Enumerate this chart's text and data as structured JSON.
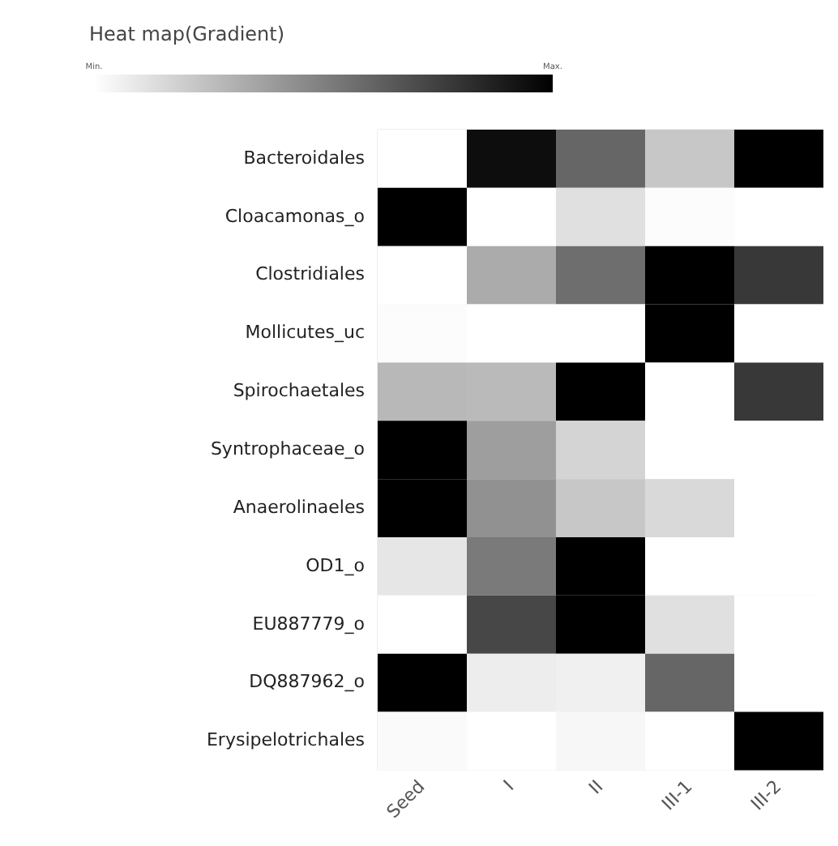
{
  "chart_data": {
    "type": "heatmap",
    "title": "Heat map(Gradient)",
    "categories": [
      "Seed",
      "I",
      "II",
      "III-1",
      "III-2"
    ],
    "y_categories": [
      "Bacteroidales",
      "Cloacamonas_o",
      "Clostridiales",
      "Mollicutes_uc",
      "Spirochaetales",
      "Syntrophaceae_o",
      "Anaerolinaeles",
      "OD1_o",
      "EU887779_o",
      "DQ887962_o",
      "Erysipelotrichales"
    ],
    "cells": [
      [
        0,
        0.95,
        0.6,
        0.22,
        1
      ],
      [
        1,
        0,
        0.12,
        0.01,
        0
      ],
      [
        0,
        0.33,
        0.57,
        1,
        0.78
      ],
      [
        0.01,
        0,
        0,
        1,
        0
      ],
      [
        0.28,
        0.27,
        1,
        0,
        0.78
      ],
      [
        1,
        0.38,
        0.17,
        0,
        0
      ],
      [
        1,
        0.43,
        0.22,
        0.15,
        0
      ],
      [
        0.1,
        0.52,
        1,
        0,
        0
      ],
      [
        0,
        0.72,
        1,
        0.12,
        0
      ],
      [
        1,
        0.07,
        0.06,
        0.6,
        0
      ],
      [
        0.02,
        0,
        0.03,
        0,
        1
      ]
    ],
    "clim": [
      0,
      1
    ],
    "cticks": [
      {
        "value": 0,
        "label": "Min."
      },
      {
        "value": 1,
        "label": "Max."
      }
    ]
  }
}
